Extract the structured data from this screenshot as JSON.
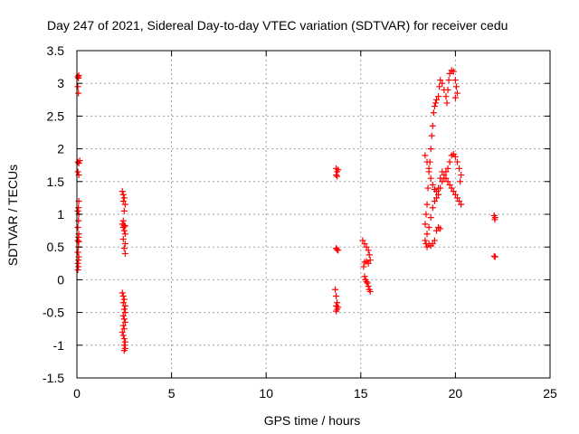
{
  "chart_data": {
    "type": "scatter",
    "title": "Day 247 of 2021, Sidereal Day-to-day VTEC variation (SDTVAR) for receiver cedu",
    "xlabel": "GPS time / hours",
    "ylabel": "SDTVAR / TECUs",
    "xlim": [
      0,
      25
    ],
    "ylim": [
      -1.5,
      3.5
    ],
    "x_ticks": [
      0,
      5,
      10,
      15,
      20,
      25
    ],
    "y_ticks": [
      -1.5,
      -1,
      -0.5,
      0,
      0.5,
      1,
      1.5,
      2,
      2.5,
      3,
      3.5
    ],
    "x_tick_labels": [
      "0",
      "5",
      "10",
      "15",
      "20",
      "25"
    ],
    "y_tick_labels": [
      "-1.5",
      "-1",
      "-0.5",
      "0",
      "0.5",
      "1",
      "1.5",
      "2",
      "2.5",
      "3",
      "3.5"
    ],
    "grid": true,
    "marker": "+",
    "series": [
      {
        "name": "SDTVAR",
        "color": "#ff0000",
        "points": [
          [
            0.05,
            3.1
          ],
          [
            0.08,
            3.08
          ],
          [
            0.1,
            3.12
          ],
          [
            0.05,
            2.95
          ],
          [
            0.08,
            2.85
          ],
          [
            0.05,
            1.8
          ],
          [
            0.1,
            1.78
          ],
          [
            0.15,
            1.82
          ],
          [
            0.05,
            1.65
          ],
          [
            0.1,
            1.6
          ],
          [
            0.1,
            1.2
          ],
          [
            0.08,
            1.1
          ],
          [
            0.05,
            1.05
          ],
          [
            0.1,
            1.0
          ],
          [
            0.08,
            0.9
          ],
          [
            0.05,
            0.8
          ],
          [
            0.1,
            0.7
          ],
          [
            0.08,
            0.65
          ],
          [
            0.05,
            0.6
          ],
          [
            0.1,
            0.58
          ],
          [
            0.08,
            0.5
          ],
          [
            0.05,
            0.42
          ],
          [
            0.1,
            0.35
          ],
          [
            0.08,
            0.3
          ],
          [
            0.05,
            0.25
          ],
          [
            0.08,
            0.2
          ],
          [
            0.05,
            0.15
          ],
          [
            2.4,
            1.35
          ],
          [
            2.45,
            1.3
          ],
          [
            2.5,
            1.25
          ],
          [
            2.45,
            1.2
          ],
          [
            2.55,
            1.15
          ],
          [
            2.5,
            1.05
          ],
          [
            2.45,
            0.9
          ],
          [
            2.4,
            0.85
          ],
          [
            2.5,
            0.83
          ],
          [
            2.55,
            0.82
          ],
          [
            2.45,
            0.8
          ],
          [
            2.5,
            0.75
          ],
          [
            2.55,
            0.7
          ],
          [
            2.45,
            0.62
          ],
          [
            2.55,
            0.55
          ],
          [
            2.5,
            0.48
          ],
          [
            2.55,
            0.4
          ],
          [
            2.4,
            -0.2
          ],
          [
            2.45,
            -0.25
          ],
          [
            2.5,
            -0.3
          ],
          [
            2.45,
            -0.35
          ],
          [
            2.55,
            -0.4
          ],
          [
            2.5,
            -0.45
          ],
          [
            2.55,
            -0.5
          ],
          [
            2.45,
            -0.55
          ],
          [
            2.5,
            -0.6
          ],
          [
            2.55,
            -0.65
          ],
          [
            2.45,
            -0.7
          ],
          [
            2.5,
            -0.75
          ],
          [
            2.4,
            -0.8
          ],
          [
            2.45,
            -0.85
          ],
          [
            2.5,
            -0.9
          ],
          [
            2.55,
            -0.95
          ],
          [
            2.5,
            -1.0
          ],
          [
            2.55,
            -1.05
          ],
          [
            2.5,
            -1.08
          ],
          [
            13.7,
            1.7
          ],
          [
            13.75,
            1.65
          ],
          [
            13.8,
            1.68
          ],
          [
            13.7,
            1.6
          ],
          [
            13.75,
            1.58
          ],
          [
            13.7,
            0.48
          ],
          [
            13.75,
            0.46
          ],
          [
            13.8,
            0.45
          ],
          [
            13.65,
            -0.15
          ],
          [
            13.7,
            -0.25
          ],
          [
            13.75,
            -0.35
          ],
          [
            13.7,
            -0.4
          ],
          [
            13.8,
            -0.42
          ],
          [
            13.75,
            -0.45
          ],
          [
            13.7,
            -0.48
          ],
          [
            15.1,
            0.6
          ],
          [
            15.2,
            0.55
          ],
          [
            15.3,
            0.5
          ],
          [
            15.4,
            0.45
          ],
          [
            15.45,
            0.38
          ],
          [
            15.5,
            0.3
          ],
          [
            15.4,
            0.25
          ],
          [
            15.3,
            0.28
          ],
          [
            15.2,
            0.27
          ],
          [
            15.15,
            0.2
          ],
          [
            15.2,
            0.05
          ],
          [
            15.25,
            0.0
          ],
          [
            15.3,
            -0.03
          ],
          [
            15.35,
            -0.05
          ],
          [
            15.4,
            -0.1
          ],
          [
            15.45,
            -0.15
          ],
          [
            15.5,
            -0.18
          ],
          [
            18.4,
            0.6
          ],
          [
            18.45,
            0.55
          ],
          [
            18.5,
            0.5
          ],
          [
            18.6,
            0.55
          ],
          [
            18.7,
            0.52
          ],
          [
            18.8,
            0.55
          ],
          [
            18.9,
            0.6
          ],
          [
            19.0,
            0.75
          ],
          [
            19.1,
            0.8
          ],
          [
            19.2,
            0.78
          ],
          [
            18.4,
            0.85
          ],
          [
            18.45,
            1.0
          ],
          [
            18.5,
            1.15
          ],
          [
            18.55,
            1.4
          ],
          [
            18.6,
            1.65
          ],
          [
            18.65,
            1.8
          ],
          [
            18.7,
            2.0
          ],
          [
            18.75,
            2.2
          ],
          [
            18.8,
            2.35
          ],
          [
            18.85,
            2.55
          ],
          [
            18.9,
            2.65
          ],
          [
            18.95,
            2.7
          ],
          [
            19.0,
            2.75
          ],
          [
            19.1,
            2.8
          ],
          [
            19.15,
            2.95
          ],
          [
            19.2,
            3.05
          ],
          [
            19.3,
            3.0
          ],
          [
            19.4,
            2.9
          ],
          [
            19.5,
            2.8
          ],
          [
            19.55,
            2.7
          ],
          [
            19.6,
            2.9
          ],
          [
            19.65,
            3.05
          ],
          [
            19.7,
            3.15
          ],
          [
            19.8,
            3.2
          ],
          [
            19.9,
            3.18
          ],
          [
            20.0,
            3.05
          ],
          [
            20.05,
            2.95
          ],
          [
            20.1,
            2.85
          ],
          [
            20.0,
            2.78
          ],
          [
            18.5,
            0.7
          ],
          [
            18.6,
            0.8
          ],
          [
            18.7,
            0.95
          ],
          [
            18.8,
            1.1
          ],
          [
            18.9,
            1.2
          ],
          [
            19.0,
            1.25
          ],
          [
            19.1,
            1.3
          ],
          [
            19.2,
            1.4
          ],
          [
            19.3,
            1.5
          ],
          [
            19.4,
            1.55
          ],
          [
            19.5,
            1.65
          ],
          [
            19.6,
            1.7
          ],
          [
            19.7,
            1.8
          ],
          [
            19.8,
            1.9
          ],
          [
            19.9,
            1.92
          ],
          [
            20.0,
            1.88
          ],
          [
            20.1,
            1.8
          ],
          [
            20.2,
            1.7
          ],
          [
            20.3,
            1.6
          ],
          [
            20.25,
            1.5
          ],
          [
            18.4,
            1.9
          ],
          [
            18.5,
            1.8
          ],
          [
            18.6,
            1.7
          ],
          [
            18.7,
            1.55
          ],
          [
            18.8,
            1.45
          ],
          [
            18.9,
            1.38
          ],
          [
            19.0,
            1.35
          ],
          [
            19.1,
            1.4
          ],
          [
            19.2,
            1.55
          ],
          [
            19.3,
            1.65
          ],
          [
            19.4,
            1.6
          ],
          [
            19.5,
            1.55
          ],
          [
            19.6,
            1.5
          ],
          [
            19.7,
            1.45
          ],
          [
            19.8,
            1.4
          ],
          [
            19.9,
            1.35
          ],
          [
            20.0,
            1.3
          ],
          [
            20.1,
            1.25
          ],
          [
            20.2,
            1.2
          ],
          [
            20.3,
            1.15
          ],
          [
            22.05,
            0.98
          ],
          [
            22.1,
            0.95
          ],
          [
            22.08,
            0.92
          ],
          [
            22.05,
            0.36
          ],
          [
            22.1,
            0.35
          ]
        ]
      }
    ]
  }
}
